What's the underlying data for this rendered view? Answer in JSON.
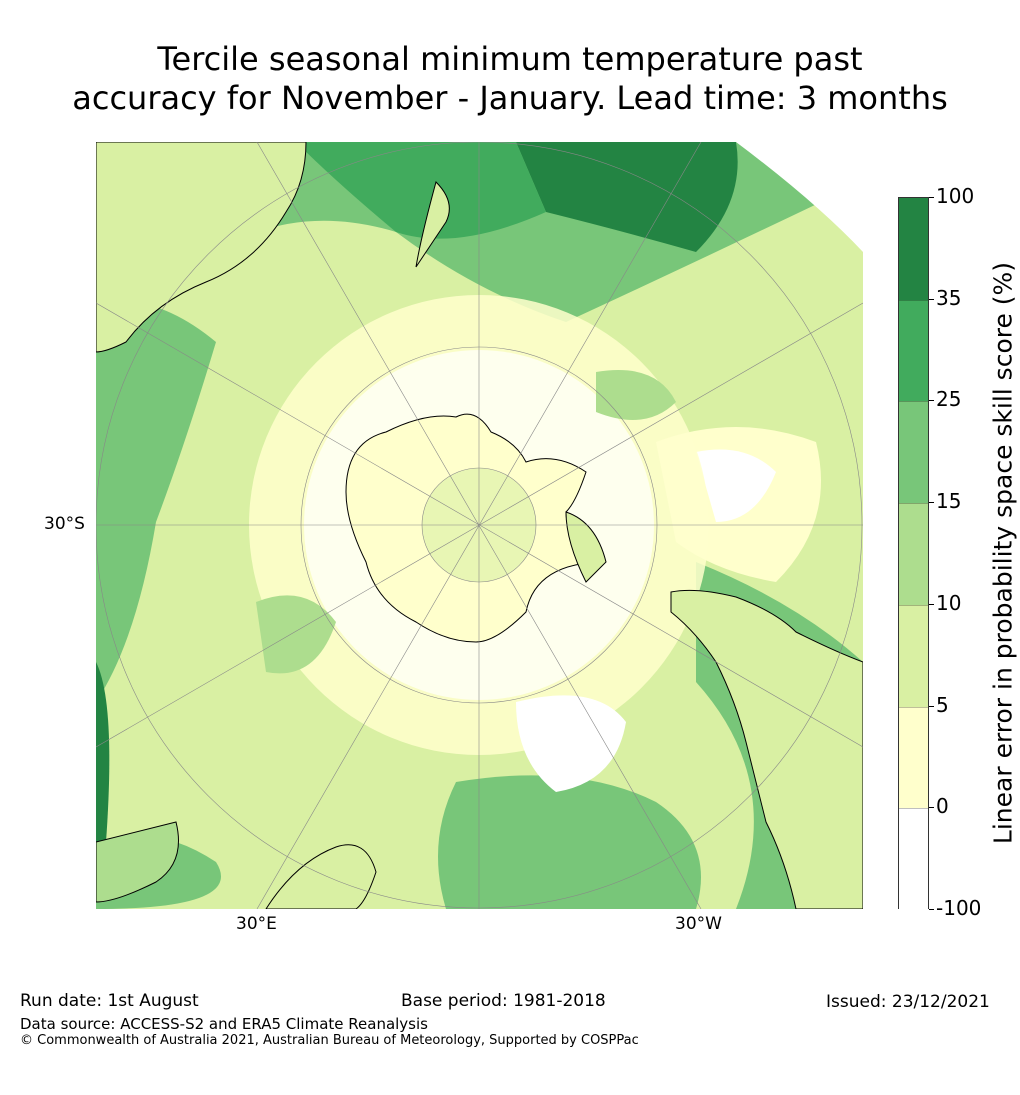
{
  "title": {
    "line1": "Tercile seasonal minimum temperature past",
    "line2": "accuracy for November - January. Lead time: 3 months"
  },
  "map": {
    "projection": "south-polar-stereographic",
    "labels": {
      "lat_left": "30°S",
      "lon_bottom_left": "30°E",
      "lon_bottom_right": "30°W"
    }
  },
  "colorbar": {
    "title": "Linear error in probability space skill score (%)",
    "bins": [
      {
        "label": "100",
        "color": "#238443"
      },
      {
        "label": "35",
        "color": "#41ab5d"
      },
      {
        "label": "25",
        "color": "#78c679"
      },
      {
        "label": "15",
        "color": "#addd8e"
      },
      {
        "label": "10",
        "color": "#d9f0a3"
      },
      {
        "label": "5",
        "color": "#ffffcc"
      },
      {
        "label": "0",
        "color": "#ffffff"
      },
      {
        "label": "-100",
        "color": "#ffffff"
      }
    ]
  },
  "footer": {
    "run_date": "Run date: 1st August",
    "base_period": "Base period: 1981-2018",
    "issued": "Issued: 23/12/2021",
    "data_source": "Data source: ACCESS-S2 and ERA5 Climate Reanalysis",
    "copyright": "© Commonwealth of Australia 2021, Australian Bureau of Meteorology, Supported by COSPPac"
  }
}
